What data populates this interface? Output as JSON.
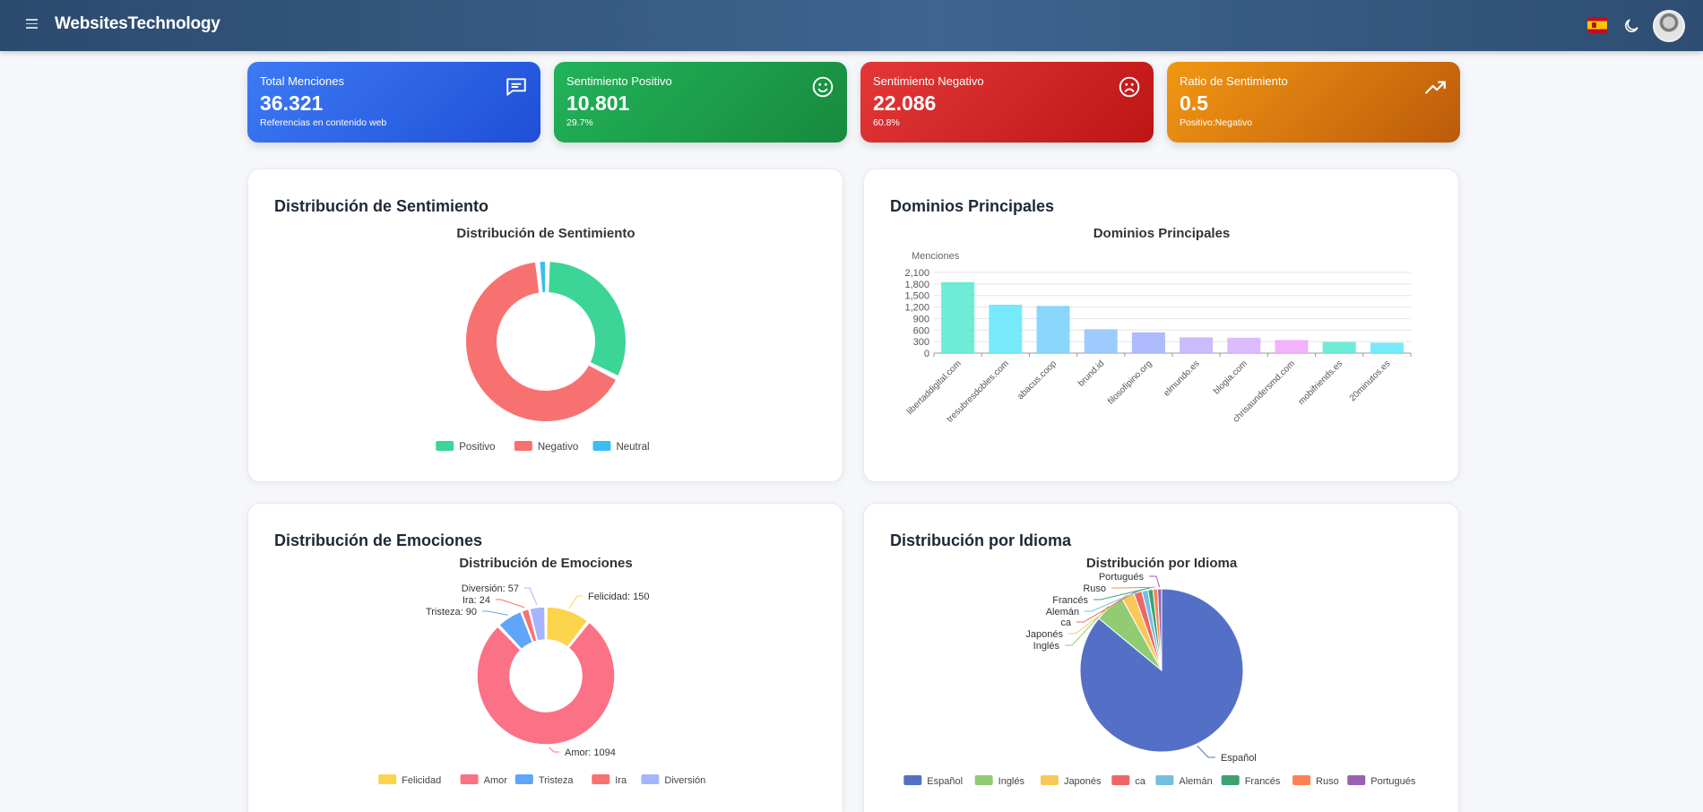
{
  "app": {
    "title": "WebsitesTechnology"
  },
  "header": {
    "menu_icon": "hamburger-icon",
    "language_flag": "spain-flag-icon",
    "theme_icon": "moon-icon",
    "avatar": "user-avatar"
  },
  "colors": {
    "header": "#34587f",
    "total": "#2f63e8",
    "positive": "#1c9e4b",
    "negative": "#d42525",
    "ratio": "#d97a10"
  },
  "stats": [
    {
      "label": "Total Menciones",
      "value": "36.321",
      "sub": "Referencias en contenido web",
      "icon": "chat-message-icon"
    },
    {
      "label": "Sentimiento Positivo",
      "value": "10.801",
      "sub": "29.7%",
      "icon": "smile-icon"
    },
    {
      "label": "Sentimiento Negativo",
      "value": "22.086",
      "sub": "60.8%",
      "icon": "frown-icon"
    },
    {
      "label": "Ratio de Sentimiento",
      "value": "0.5",
      "sub": "Positivo:Negativo",
      "icon": "trending-up-icon"
    }
  ],
  "cards": {
    "sentiment": {
      "heading": "Distribución de Sentimiento"
    },
    "domains": {
      "heading": "Dominios Principales"
    },
    "emotions": {
      "heading": "Distribución de Emociones"
    },
    "language": {
      "heading": "Distribución por Idioma"
    }
  },
  "chart_data": [
    {
      "type": "pie",
      "variant": "donut",
      "title": "Distribución de Sentimiento",
      "categories": [
        "Positivo",
        "Negativo",
        "Neutral"
      ],
      "values": [
        10801,
        22086,
        664
      ],
      "colors": [
        "#3dd498",
        "#f87171",
        "#3bbdf4"
      ],
      "legend": "bottom"
    },
    {
      "type": "bar",
      "title": "Dominios Principales",
      "ylabel": "Menciones",
      "ylim": [
        0,
        2100
      ],
      "yticks": [
        0,
        300,
        600,
        900,
        1200,
        1500,
        1800,
        2100
      ],
      "yticklabels": [
        "0",
        "300",
        "600",
        "900",
        "1,200",
        "1,500",
        "1,800",
        "2,100"
      ],
      "grid": true,
      "categories": [
        "libertaddigital.com",
        "tresubresdobles.com",
        "abacus.coop",
        "brund.id",
        "filosofipino.org",
        "elmundo.es",
        "blogia.com",
        "chrisaundersmd.com",
        "mobifriends.es",
        "20minutos.es"
      ],
      "values": [
        1850,
        1260,
        1230,
        620,
        540,
        410,
        400,
        340,
        290,
        270
      ],
      "colors": [
        "#5eead4",
        "#67e8f9",
        "#7dd3fc",
        "#93c5fd",
        "#a5b4fc",
        "#c4b5fd",
        "#d8b4fe",
        "#f0abfc",
        "#5eead4",
        "#67e8f9"
      ]
    },
    {
      "type": "pie",
      "variant": "donut",
      "title": "Distribución de Emociones",
      "categories": [
        "Felicidad",
        "Amor",
        "Tristeza",
        "Ira",
        "Diversión"
      ],
      "values": [
        150,
        1094,
        90,
        24,
        57
      ],
      "data_labels": [
        "Felicidad: 150",
        "Amor: 1094",
        "Tristeza: 90",
        "Ira: 24",
        "Diversión: 57"
      ],
      "colors": [
        "#fcd34d",
        "#fb7185",
        "#60a5fa",
        "#f87171",
        "#a5b4fc"
      ],
      "legend": "bottom"
    },
    {
      "type": "pie",
      "title": "Distribución por Idioma",
      "categories": [
        "Español",
        "Inglés",
        "Japonés",
        "ca",
        "Alemán",
        "Francés",
        "Ruso",
        "Portugués"
      ],
      "values": [
        86.0,
        6.0,
        2.5,
        1.6,
        1.2,
        1.0,
        0.9,
        0.8
      ],
      "colors": [
        "#5470c6",
        "#91cc75",
        "#fac858",
        "#ee6666",
        "#73c0de",
        "#3ba272",
        "#fc8452",
        "#9a60b4"
      ],
      "legend": "bottom"
    }
  ]
}
